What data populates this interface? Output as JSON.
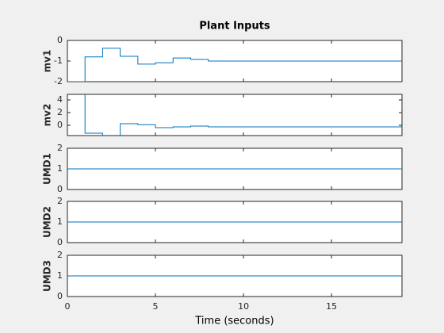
{
  "chart_data": [
    {
      "type": "stairs",
      "title": "Plant Inputs",
      "y_label": "mv1",
      "xlim": [
        0,
        19
      ],
      "ylim": [
        -2,
        0
      ],
      "yticks": [
        0,
        -1,
        -2
      ],
      "series": [
        {
          "color": "#0072bd",
          "x": [
            0,
            1,
            2,
            3,
            4,
            5,
            6,
            7,
            8,
            19
          ],
          "values": [
            -2,
            -0.8,
            -0.38,
            -0.77,
            -1.15,
            -1.08,
            -0.85,
            -0.92,
            -1.0,
            -1.0
          ]
        }
      ]
    },
    {
      "type": "stairs",
      "y_label": "mv2",
      "xlim": [
        0,
        19
      ],
      "ylim": [
        -1.625,
        4.875
      ],
      "yticks": [
        4,
        2,
        0
      ],
      "series": [
        {
          "color": "#0072bd",
          "x": [
            0,
            1,
            2,
            3,
            4,
            5,
            6,
            7,
            8,
            19
          ],
          "values": [
            5,
            -1.25,
            -1.7,
            0.25,
            0.1,
            -0.38,
            -0.25,
            -0.12,
            -0.25,
            -0.25
          ]
        }
      ]
    },
    {
      "type": "stairs",
      "y_label": "UMD1",
      "xlim": [
        0,
        19
      ],
      "ylim": [
        0,
        2
      ],
      "yticks": [
        2,
        1,
        0
      ],
      "series": [
        {
          "color": "#0072bd",
          "x": [
            0,
            19
          ],
          "values": [
            1,
            1
          ]
        }
      ]
    },
    {
      "type": "stairs",
      "y_label": "UMD2",
      "xlim": [
        0,
        19
      ],
      "ylim": [
        0,
        2
      ],
      "yticks": [
        2,
        1,
        0
      ],
      "series": [
        {
          "color": "#0072bd",
          "x": [
            0,
            19
          ],
          "values": [
            1,
            1
          ]
        }
      ]
    },
    {
      "type": "stairs",
      "y_label": "UMD3",
      "x_label": "Time (seconds)",
      "xlim": [
        0,
        19
      ],
      "ylim": [
        0,
        2
      ],
      "yticks": [
        2,
        1,
        0
      ],
      "xticks": [
        0,
        5,
        10,
        15
      ],
      "series": [
        {
          "color": "#0072bd",
          "x": [
            0,
            19
          ],
          "values": [
            1,
            1
          ]
        }
      ]
    }
  ]
}
